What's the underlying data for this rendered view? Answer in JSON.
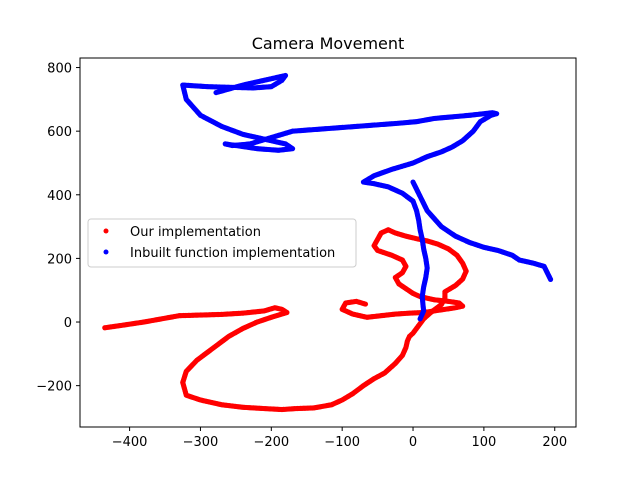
{
  "chart_data": {
    "type": "scatter",
    "title": "Camera Movement",
    "xlabel": "",
    "ylabel": "",
    "xlim": [
      -470,
      230
    ],
    "ylim": [
      -330,
      830
    ],
    "xticks": [
      -400,
      -300,
      -200,
      -100,
      0,
      100,
      200
    ],
    "yticks": [
      -200,
      0,
      200,
      400,
      600,
      800
    ],
    "xtick_labels": [
      "−400",
      "−300",
      "−200",
      "−100",
      "0",
      "100",
      "200"
    ],
    "ytick_labels": [
      "−200",
      "0",
      "200",
      "400",
      "600",
      "800"
    ],
    "grid": false,
    "legend_position": "center-left",
    "series": [
      {
        "name": "Our implementation",
        "color": "#ff0000",
        "x": [
          -435,
          -410,
          -380,
          -355,
          -330,
          -300,
          -270,
          -240,
          -210,
          -195,
          -185,
          -178,
          -200,
          -220,
          -240,
          -260,
          -275,
          -290,
          -305,
          -320,
          -325,
          -320,
          -300,
          -270,
          -240,
          -210,
          -185,
          -165,
          -140,
          -115,
          -100,
          -85,
          -70,
          -55,
          -40,
          -25,
          -15,
          -10,
          -8,
          -5,
          0,
          5,
          10,
          15,
          25,
          40,
          45,
          45,
          60,
          70,
          75,
          70,
          62,
          50,
          35,
          20,
          5,
          -10,
          -25,
          -35,
          -45,
          -50,
          -55,
          -50,
          -30,
          -15,
          -10,
          -15,
          -25,
          -20,
          -10,
          0,
          10,
          20,
          30,
          50,
          65,
          70,
          60,
          45,
          30,
          15,
          -5,
          -25,
          -45,
          -65,
          -85,
          -100,
          -95,
          -80,
          -65
        ],
        "y": [
          -18,
          -10,
          0,
          10,
          20,
          22,
          24,
          28,
          35,
          45,
          40,
          30,
          15,
          0,
          -20,
          -45,
          -70,
          -95,
          -120,
          -155,
          -190,
          -230,
          -245,
          -260,
          -268,
          -272,
          -275,
          -272,
          -270,
          -260,
          -245,
          -225,
          -200,
          -178,
          -160,
          -130,
          -105,
          -80,
          -60,
          -45,
          -35,
          -20,
          -5,
          10,
          30,
          55,
          75,
          95,
          115,
          135,
          160,
          185,
          210,
          230,
          245,
          255,
          262,
          270,
          280,
          290,
          280,
          260,
          240,
          225,
          210,
          195,
          175,
          155,
          140,
          120,
          105,
          90,
          80,
          75,
          70,
          65,
          60,
          50,
          45,
          40,
          35,
          30,
          28,
          25,
          20,
          15,
          25,
          40,
          60,
          65,
          55
        ]
      },
      {
        "name": "Inbuilt function implementation",
        "color": "#0000ff",
        "x": [
          10,
          12,
          15,
          14,
          13,
          15,
          18,
          20,
          18,
          15,
          13,
          10,
          8,
          5,
          0,
          -15,
          -35,
          -55,
          -70,
          -55,
          -30,
          0,
          20,
          40,
          55,
          70,
          85,
          95,
          110,
          118,
          112,
          100,
          80,
          55,
          30,
          5,
          -20,
          -50,
          -80,
          -110,
          -140,
          -170,
          -200,
          -230,
          -255,
          -265,
          -250,
          -220,
          -190,
          -170,
          -180,
          -210,
          -240,
          -270,
          -300,
          -320,
          -325,
          -290,
          -260,
          -225,
          -200,
          -185,
          -180,
          -190,
          -210,
          -240,
          -280
        ],
        "y": [
          10,
          20,
          35,
          55,
          80,
          110,
          140,
          170,
          200,
          230,
          260,
          290,
          320,
          350,
          380,
          405,
          425,
          435,
          440,
          460,
          480,
          500,
          520,
          535,
          550,
          570,
          600,
          630,
          650,
          655,
          658,
          655,
          650,
          645,
          640,
          630,
          625,
          620,
          615,
          610,
          605,
          600,
          580,
          560,
          555,
          560,
          555,
          545,
          540,
          545,
          560,
          575,
          590,
          615,
          650,
          700,
          745,
          740,
          738,
          736,
          740,
          760,
          775,
          770,
          760,
          745,
          720
        ]
      }
    ],
    "extra_segment": {
      "x": [
        0,
        20,
        40,
        60,
        80,
        100,
        120,
        140,
        150,
        160,
        170,
        185,
        195
      ],
      "y": [
        440,
        350,
        300,
        270,
        250,
        235,
        225,
        210,
        195,
        190,
        185,
        175,
        130
      ]
    }
  }
}
